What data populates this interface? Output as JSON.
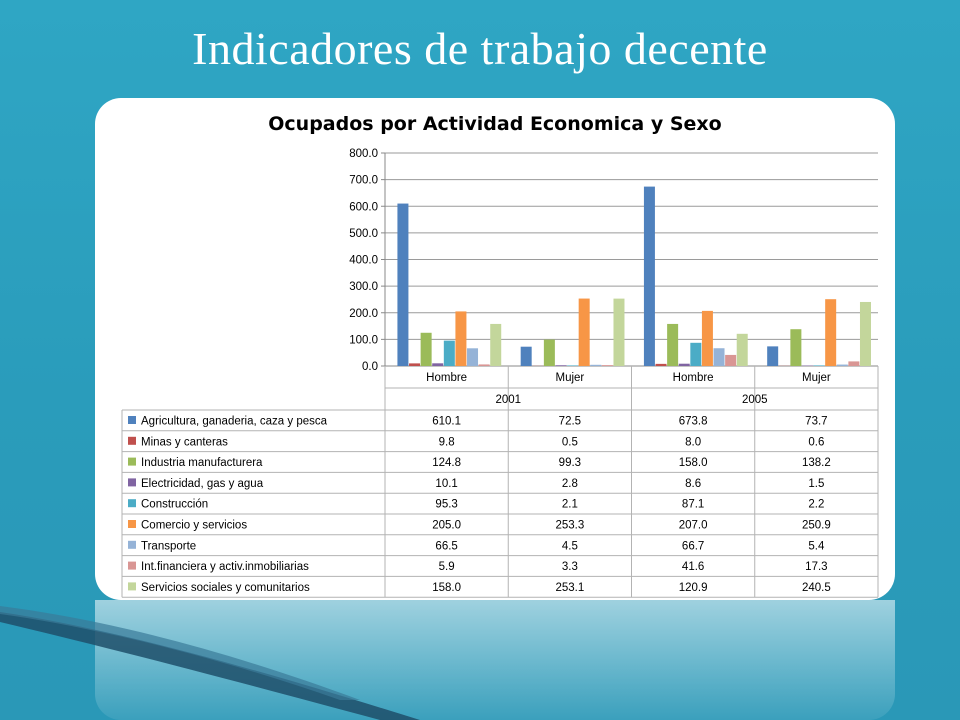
{
  "slide": {
    "title": "Indicadores de trabajo decente"
  },
  "chart_data": {
    "type": "bar",
    "title": "Ocupados por Actividad Economica y Sexo",
    "xlabel": "",
    "ylabel": "",
    "ylim": [
      0,
      800
    ],
    "yticks": [
      "0.0",
      "100.0",
      "200.0",
      "300.0",
      "400.0",
      "500.0",
      "600.0",
      "700.0",
      "800.0"
    ],
    "years": [
      "2001",
      "2005"
    ],
    "categories": [
      "Hombre",
      "Mujer",
      "Hombre",
      "Mujer"
    ],
    "grid": true,
    "legend": "data-table",
    "series": [
      {
        "name": "Agricultura, ganaderia, caza y pesca",
        "color": "#4f81bd",
        "values": [
          610.1,
          72.5,
          673.8,
          73.7
        ],
        "labels": [
          "610.1",
          "72.5",
          "673.8",
          "73.7"
        ]
      },
      {
        "name": "Minas y canteras",
        "color": "#c0504d",
        "values": [
          9.8,
          0.5,
          8.0,
          0.6
        ],
        "labels": [
          "9.8",
          "0.5",
          "8.0",
          "0.6"
        ]
      },
      {
        "name": "Industria manufacturera",
        "color": "#9bbb59",
        "values": [
          124.8,
          99.3,
          158.0,
          138.2
        ],
        "labels": [
          "124.8",
          "99.3",
          "158.0",
          "138.2"
        ]
      },
      {
        "name": "Electricidad, gas y agua",
        "color": "#8064a2",
        "values": [
          10.1,
          2.8,
          8.6,
          1.5
        ],
        "labels": [
          "10.1",
          "2.8",
          "8.6",
          "1.5"
        ]
      },
      {
        "name": "Construcción",
        "color": "#4bacc6",
        "values": [
          95.3,
          2.1,
          87.1,
          2.2
        ],
        "labels": [
          "95.3",
          "2.1",
          "87.1",
          "2.2"
        ]
      },
      {
        "name": "Comercio y servicios",
        "color": "#f79646",
        "values": [
          205.0,
          253.3,
          207.0,
          250.9
        ],
        "labels": [
          "205.0",
          "253.3",
          "207.0",
          "250.9"
        ]
      },
      {
        "name": "Transporte",
        "color": "#95b3d7",
        "values": [
          66.5,
          4.5,
          66.7,
          5.4
        ],
        "labels": [
          "66.5",
          "4.5",
          "66.7",
          "5.4"
        ]
      },
      {
        "name": "Int.financiera y activ.inmobiliarias",
        "color": "#d99694",
        "values": [
          5.9,
          3.3,
          41.6,
          17.3
        ],
        "labels": [
          "5.9",
          "3.3",
          "41.6",
          "17.3"
        ]
      },
      {
        "name": "Servicios sociales y comunitarios",
        "color": "#c3d69b",
        "values": [
          158.0,
          253.1,
          120.9,
          240.5
        ],
        "labels": [
          "158.0",
          "253.1",
          "120.9",
          "240.5"
        ]
      }
    ]
  }
}
